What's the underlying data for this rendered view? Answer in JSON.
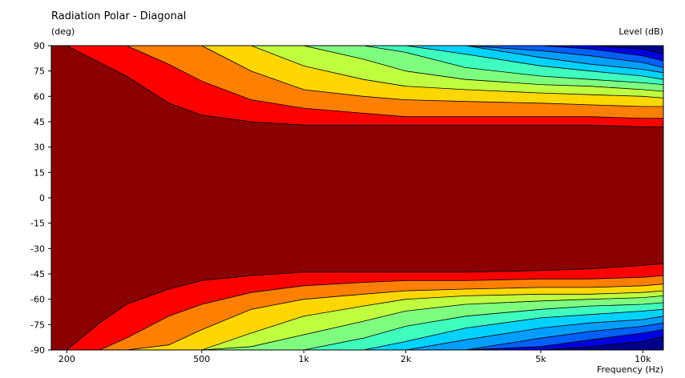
{
  "chart_data": {
    "type": "heatmap",
    "title": "Radiation Polar - Diagonal",
    "ylabel": "(deg)",
    "colorbar_label": "Level  (dB)",
    "xlabel": "Frequency  (Hz)",
    "x_scale": "log",
    "xlim": [
      180,
      11500
    ],
    "ylim": [
      -90,
      90
    ],
    "x_ticks": [
      {
        "value": 200,
        "label": "200"
      },
      {
        "value": 500,
        "label": "500"
      },
      {
        "value": 1000,
        "label": "1k"
      },
      {
        "value": 2000,
        "label": "2k"
      },
      {
        "value": 5000,
        "label": "5k"
      },
      {
        "value": 10000,
        "label": "10k"
      }
    ],
    "y_ticks": [
      90,
      75,
      60,
      45,
      30,
      15,
      0,
      -15,
      -30,
      -45,
      -60,
      -75,
      -90
    ],
    "contour_levels": [
      {
        "color": "#8B0000"
      },
      {
        "color": "#FF0000"
      },
      {
        "color": "#FF7F00"
      },
      {
        "color": "#FFD700"
      },
      {
        "color": "#BFFF3F"
      },
      {
        "color": "#7FFF7F"
      },
      {
        "color": "#3FFFBF"
      },
      {
        "color": "#00D2FF"
      },
      {
        "color": "#009FFF"
      },
      {
        "color": "#0060FF"
      },
      {
        "color": "#0000E0"
      },
      {
        "color": "#00008B"
      }
    ],
    "boundary_frequencies": [
      180,
      200,
      250,
      300,
      400,
      500,
      700,
      1000,
      1500,
      2000,
      3000,
      5000,
      7000,
      10000,
      11500
    ],
    "boundaries_top_deg": [
      [
        90,
        90,
        80,
        72,
        56,
        49,
        45,
        43,
        43,
        43,
        43,
        43,
        43,
        42,
        42
      ],
      [
        90,
        90,
        90,
        90,
        79,
        69,
        58,
        53,
        50,
        48,
        48,
        48,
        48,
        47,
        47
      ],
      [
        90,
        90,
        90,
        90,
        90,
        90,
        75,
        64,
        60,
        58,
        57,
        56,
        55,
        54,
        54
      ],
      [
        90,
        90,
        90,
        90,
        90,
        90,
        90,
        78,
        70,
        66,
        64,
        62,
        61,
        60,
        59
      ],
      [
        90,
        90,
        90,
        90,
        90,
        90,
        90,
        90,
        82,
        75,
        70,
        67,
        66,
        64,
        63
      ],
      [
        90,
        90,
        90,
        90,
        90,
        90,
        90,
        90,
        90,
        86,
        77,
        72,
        70,
        68,
        67
      ],
      [
        90,
        90,
        90,
        90,
        90,
        90,
        90,
        90,
        90,
        90,
        85,
        78,
        75,
        72,
        70
      ],
      [
        90,
        90,
        90,
        90,
        90,
        90,
        90,
        90,
        90,
        90,
        90,
        83,
        79,
        76,
        74
      ],
      [
        90,
        90,
        90,
        90,
        90,
        90,
        90,
        90,
        90,
        90,
        90,
        87,
        84,
        80,
        77
      ],
      [
        90,
        90,
        90,
        90,
        90,
        90,
        90,
        90,
        90,
        90,
        90,
        90,
        88,
        84,
        81
      ],
      [
        90,
        90,
        90,
        90,
        90,
        90,
        90,
        90,
        90,
        90,
        90,
        90,
        90,
        88,
        85
      ]
    ],
    "boundaries_bottom_deg": [
      [
        90,
        90,
        74,
        63,
        54,
        49,
        46,
        44,
        44,
        44,
        44,
        43,
        42,
        40,
        39
      ],
      [
        90,
        90,
        90,
        83,
        70,
        63,
        56,
        52,
        50,
        49,
        49,
        48,
        48,
        47,
        46
      ],
      [
        90,
        90,
        90,
        90,
        87,
        78,
        66,
        60,
        57,
        55,
        54,
        53,
        53,
        52,
        51
      ],
      [
        90,
        90,
        90,
        90,
        90,
        90,
        80,
        70,
        64,
        60,
        58,
        57,
        57,
        56,
        55
      ],
      [
        90,
        90,
        90,
        90,
        90,
        90,
        88,
        81,
        73,
        67,
        63,
        61,
        60,
        59,
        58
      ],
      [
        90,
        90,
        90,
        90,
        90,
        90,
        90,
        90,
        83,
        76,
        70,
        66,
        64,
        63,
        62
      ],
      [
        90,
        90,
        90,
        90,
        90,
        90,
        90,
        90,
        90,
        85,
        77,
        71,
        69,
        67,
        66
      ],
      [
        90,
        90,
        90,
        90,
        90,
        90,
        90,
        90,
        90,
        90,
        84,
        77,
        74,
        72,
        70
      ],
      [
        90,
        90,
        90,
        90,
        90,
        90,
        90,
        90,
        90,
        90,
        90,
        83,
        79,
        76,
        74
      ],
      [
        90,
        90,
        90,
        90,
        90,
        90,
        90,
        90,
        90,
        90,
        90,
        88,
        84,
        80,
        78
      ],
      [
        90,
        90,
        90,
        90,
        90,
        90,
        90,
        90,
        90,
        90,
        90,
        90,
        88,
        85,
        82
      ]
    ]
  }
}
